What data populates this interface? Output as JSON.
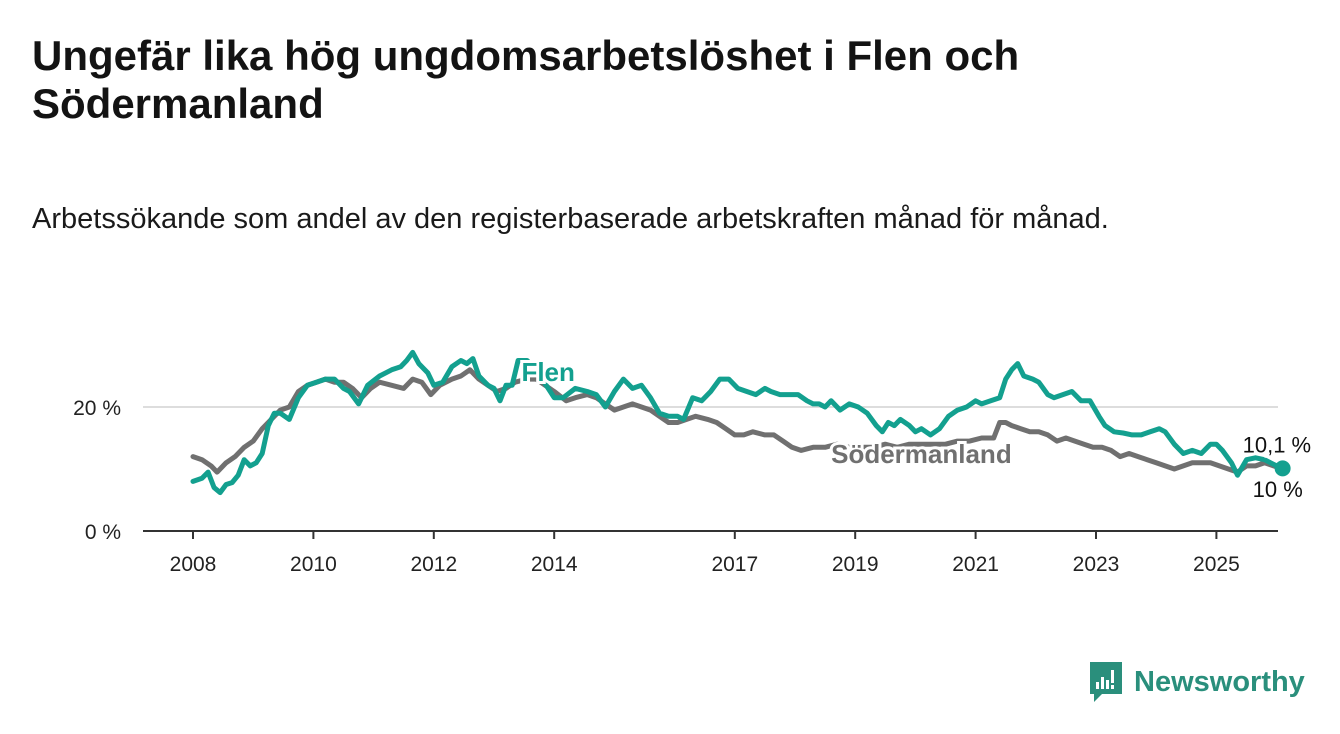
{
  "title": "Ungefär lika hög ungdomsarbetslöshet i Flen och Södermanland",
  "subtitle": "Arbetssökande som andel av den registerbaserade arbetskraften månad för månad.",
  "brand": {
    "name": "Newsworthy",
    "icon": "newsworthy-logo-icon",
    "color": "#2a8f7c"
  },
  "colors": {
    "flen": "#13a08f",
    "sodermanland": "#707070",
    "grid": "#dddddd",
    "axis": "#333333"
  },
  "chart_data": {
    "type": "line",
    "xlim": [
      2008,
      2025.9
    ],
    "ylim": [
      0,
      30
    ],
    "x_ticks": [
      {
        "value": 2008,
        "label": "2008"
      },
      {
        "value": 2010,
        "label": "2010"
      },
      {
        "value": 2012,
        "label": "2012"
      },
      {
        "value": 2014,
        "label": "2014"
      },
      {
        "value": 2017,
        "label": "2017"
      },
      {
        "value": 2019,
        "label": "2019"
      },
      {
        "value": 2021,
        "label": "2021"
      },
      {
        "value": 2023,
        "label": "2023"
      },
      {
        "value": 2025,
        "label": "2025"
      }
    ],
    "y_ticks": [
      {
        "value": 0,
        "label": "0 %"
      },
      {
        "value": 20,
        "label": "20 %"
      }
    ],
    "grid": true,
    "series": [
      {
        "name": "Flen",
        "key": "flen",
        "end_label": "10,1 %",
        "points": [
          [
            2008.0,
            8.0
          ],
          [
            2008.15,
            8.5
          ],
          [
            2008.25,
            9.5
          ],
          [
            2008.35,
            7.0
          ],
          [
            2008.45,
            6.2
          ],
          [
            2008.55,
            7.5
          ],
          [
            2008.65,
            7.8
          ],
          [
            2008.75,
            9.0
          ],
          [
            2008.85,
            11.5
          ],
          [
            2008.95,
            10.5
          ],
          [
            2009.05,
            11.0
          ],
          [
            2009.15,
            12.5
          ],
          [
            2009.25,
            17.0
          ],
          [
            2009.35,
            19.0
          ],
          [
            2009.45,
            19.0
          ],
          [
            2009.6,
            18.0
          ],
          [
            2009.75,
            21.5
          ],
          [
            2009.9,
            23.5
          ],
          [
            2010.05,
            24.0
          ],
          [
            2010.2,
            24.5
          ],
          [
            2010.35,
            24.5
          ],
          [
            2010.5,
            23.0
          ],
          [
            2010.6,
            22.5
          ],
          [
            2010.75,
            20.5
          ],
          [
            2010.9,
            23.5
          ],
          [
            2011.1,
            25.0
          ],
          [
            2011.3,
            26.0
          ],
          [
            2011.45,
            26.5
          ],
          [
            2011.55,
            27.5
          ],
          [
            2011.65,
            28.8
          ],
          [
            2011.75,
            27.0
          ],
          [
            2011.9,
            25.5
          ],
          [
            2012.0,
            23.5
          ],
          [
            2012.15,
            24.0
          ],
          [
            2012.3,
            26.5
          ],
          [
            2012.45,
            27.5
          ],
          [
            2012.55,
            27.0
          ],
          [
            2012.65,
            27.8
          ],
          [
            2012.75,
            25.0
          ],
          [
            2012.9,
            23.5
          ],
          [
            2013.0,
            23.0
          ],
          [
            2013.1,
            21.0
          ],
          [
            2013.2,
            23.5
          ],
          [
            2013.3,
            23.5
          ],
          [
            2013.4,
            27.5
          ],
          [
            2013.55,
            27.5
          ],
          [
            2013.65,
            26.5
          ],
          [
            2013.8,
            24.5
          ],
          [
            2014.0,
            21.5
          ],
          [
            2014.15,
            21.5
          ],
          [
            2014.35,
            23.0
          ],
          [
            2014.55,
            22.5
          ],
          [
            2014.7,
            22.0
          ],
          [
            2014.85,
            20.0
          ],
          [
            2015.0,
            22.5
          ],
          [
            2015.15,
            24.5
          ],
          [
            2015.3,
            23.0
          ],
          [
            2015.45,
            23.5
          ],
          [
            2015.6,
            21.5
          ],
          [
            2015.75,
            19.0
          ],
          [
            2015.9,
            18.5
          ],
          [
            2016.05,
            18.5
          ],
          [
            2016.15,
            18.0
          ],
          [
            2016.3,
            21.5
          ],
          [
            2016.45,
            21.0
          ],
          [
            2016.6,
            22.5
          ],
          [
            2016.75,
            24.5
          ],
          [
            2016.9,
            24.5
          ],
          [
            2017.05,
            23.0
          ],
          [
            2017.2,
            22.5
          ],
          [
            2017.35,
            22.0
          ],
          [
            2017.5,
            23.0
          ],
          [
            2017.6,
            22.5
          ],
          [
            2017.75,
            22.0
          ],
          [
            2017.9,
            22.0
          ],
          [
            2018.05,
            22.0
          ],
          [
            2018.2,
            21.0
          ],
          [
            2018.3,
            20.5
          ],
          [
            2018.4,
            20.5
          ],
          [
            2018.5,
            20.0
          ],
          [
            2018.6,
            21.0
          ],
          [
            2018.75,
            19.5
          ],
          [
            2018.9,
            20.5
          ],
          [
            2019.05,
            20.0
          ],
          [
            2019.2,
            19.0
          ],
          [
            2019.35,
            17.0
          ],
          [
            2019.45,
            16.0
          ],
          [
            2019.55,
            17.5
          ],
          [
            2019.65,
            17.0
          ],
          [
            2019.75,
            18.0
          ],
          [
            2019.9,
            17.0
          ],
          [
            2020.0,
            16.0
          ],
          [
            2020.1,
            16.5
          ],
          [
            2020.25,
            15.5
          ],
          [
            2020.4,
            16.5
          ],
          [
            2020.55,
            18.5
          ],
          [
            2020.7,
            19.5
          ],
          [
            2020.85,
            20.0
          ],
          [
            2021.0,
            21.0
          ],
          [
            2021.1,
            20.5
          ],
          [
            2021.25,
            21.0
          ],
          [
            2021.4,
            21.5
          ],
          [
            2021.5,
            24.5
          ],
          [
            2021.6,
            26.0
          ],
          [
            2021.7,
            27.0
          ],
          [
            2021.8,
            25.0
          ],
          [
            2021.95,
            24.5
          ],
          [
            2022.05,
            24.0
          ],
          [
            2022.2,
            22.0
          ],
          [
            2022.3,
            21.5
          ],
          [
            2022.45,
            22.0
          ],
          [
            2022.6,
            22.5
          ],
          [
            2022.75,
            21.0
          ],
          [
            2022.9,
            21.0
          ],
          [
            2023.05,
            18.5
          ],
          [
            2023.15,
            17.0
          ],
          [
            2023.3,
            16.0
          ],
          [
            2023.45,
            15.8
          ],
          [
            2023.6,
            15.5
          ],
          [
            2023.75,
            15.5
          ],
          [
            2023.9,
            16.0
          ],
          [
            2024.05,
            16.5
          ],
          [
            2024.15,
            16.0
          ],
          [
            2024.3,
            14.0
          ],
          [
            2024.45,
            12.5
          ],
          [
            2024.6,
            13.0
          ],
          [
            2024.75,
            12.5
          ],
          [
            2024.9,
            14.0
          ],
          [
            2025.0,
            14.0
          ],
          [
            2025.1,
            13.0
          ],
          [
            2025.25,
            11.0
          ],
          [
            2025.35,
            9.0
          ],
          [
            2025.5,
            11.5
          ],
          [
            2025.65,
            11.8
          ],
          [
            2025.8,
            11.5
          ],
          [
            2025.9,
            11.0
          ],
          [
            2026.0,
            10.5
          ],
          [
            2026.1,
            10.1
          ]
        ]
      },
      {
        "name": "Södermanland",
        "key": "sodermanland",
        "end_label": "10 %",
        "points": [
          [
            2008.0,
            12.0
          ],
          [
            2008.15,
            11.5
          ],
          [
            2008.3,
            10.5
          ],
          [
            2008.4,
            9.5
          ],
          [
            2008.55,
            11.0
          ],
          [
            2008.7,
            12.0
          ],
          [
            2008.85,
            13.5
          ],
          [
            2009.0,
            14.5
          ],
          [
            2009.15,
            16.5
          ],
          [
            2009.3,
            18.0
          ],
          [
            2009.45,
            19.5
          ],
          [
            2009.6,
            20.0
          ],
          [
            2009.75,
            22.5
          ],
          [
            2009.9,
            23.5
          ],
          [
            2010.05,
            24.0
          ],
          [
            2010.2,
            24.5
          ],
          [
            2010.35,
            24.0
          ],
          [
            2010.5,
            24.0
          ],
          [
            2010.65,
            23.0
          ],
          [
            2010.8,
            21.5
          ],
          [
            2010.95,
            23.0
          ],
          [
            2011.1,
            24.0
          ],
          [
            2011.3,
            23.5
          ],
          [
            2011.5,
            23.0
          ],
          [
            2011.65,
            24.5
          ],
          [
            2011.8,
            24.0
          ],
          [
            2011.95,
            22.0
          ],
          [
            2012.1,
            23.5
          ],
          [
            2012.3,
            24.5
          ],
          [
            2012.45,
            25.0
          ],
          [
            2012.6,
            26.0
          ],
          [
            2012.75,
            24.5
          ],
          [
            2012.9,
            23.5
          ],
          [
            2013.05,
            22.5
          ],
          [
            2013.2,
            23.0
          ],
          [
            2013.35,
            24.0
          ],
          [
            2013.55,
            24.5
          ],
          [
            2013.7,
            24.5
          ],
          [
            2013.85,
            23.5
          ],
          [
            2014.0,
            22.5
          ],
          [
            2014.2,
            21.0
          ],
          [
            2014.35,
            21.5
          ],
          [
            2014.55,
            22.0
          ],
          [
            2014.7,
            21.5
          ],
          [
            2014.85,
            20.5
          ],
          [
            2015.0,
            19.5
          ],
          [
            2015.15,
            20.0
          ],
          [
            2015.3,
            20.5
          ],
          [
            2015.45,
            20.0
          ],
          [
            2015.6,
            19.5
          ],
          [
            2015.75,
            18.5
          ],
          [
            2015.9,
            17.5
          ],
          [
            2016.05,
            17.5
          ],
          [
            2016.2,
            18.0
          ],
          [
            2016.35,
            18.5
          ],
          [
            2016.55,
            18.0
          ],
          [
            2016.7,
            17.5
          ],
          [
            2016.85,
            16.5
          ],
          [
            2017.0,
            15.5
          ],
          [
            2017.15,
            15.5
          ],
          [
            2017.3,
            16.0
          ],
          [
            2017.5,
            15.5
          ],
          [
            2017.65,
            15.5
          ],
          [
            2017.8,
            14.5
          ],
          [
            2017.95,
            13.5
          ],
          [
            2018.1,
            13.0
          ],
          [
            2018.3,
            13.5
          ],
          [
            2018.5,
            13.5
          ],
          [
            2018.7,
            14.0
          ],
          [
            2018.9,
            13.5
          ],
          [
            2019.1,
            13.5
          ],
          [
            2019.3,
            13.5
          ],
          [
            2019.5,
            14.0
          ],
          [
            2019.7,
            13.5
          ],
          [
            2019.9,
            14.0
          ],
          [
            2020.1,
            14.0
          ],
          [
            2020.3,
            14.0
          ],
          [
            2020.5,
            14.0
          ],
          [
            2020.7,
            14.5
          ],
          [
            2020.9,
            14.5
          ],
          [
            2021.1,
            15.0
          ],
          [
            2021.3,
            15.0
          ],
          [
            2021.4,
            17.5
          ],
          [
            2021.5,
            17.5
          ],
          [
            2021.6,
            17.0
          ],
          [
            2021.75,
            16.5
          ],
          [
            2021.9,
            16.0
          ],
          [
            2022.05,
            16.0
          ],
          [
            2022.2,
            15.5
          ],
          [
            2022.35,
            14.5
          ],
          [
            2022.5,
            15.0
          ],
          [
            2022.65,
            14.5
          ],
          [
            2022.8,
            14.0
          ],
          [
            2022.95,
            13.5
          ],
          [
            2023.1,
            13.5
          ],
          [
            2023.25,
            13.0
          ],
          [
            2023.4,
            12.0
          ],
          [
            2023.55,
            12.5
          ],
          [
            2023.7,
            12.0
          ],
          [
            2023.85,
            11.5
          ],
          [
            2024.0,
            11.0
          ],
          [
            2024.15,
            10.5
          ],
          [
            2024.3,
            10.0
          ],
          [
            2024.45,
            10.5
          ],
          [
            2024.6,
            11.0
          ],
          [
            2024.75,
            11.0
          ],
          [
            2024.9,
            11.0
          ],
          [
            2025.05,
            10.5
          ],
          [
            2025.2,
            10.0
          ],
          [
            2025.35,
            9.5
          ],
          [
            2025.5,
            10.5
          ],
          [
            2025.65,
            10.5
          ],
          [
            2025.8,
            11.0
          ],
          [
            2025.95,
            10.5
          ],
          [
            2026.1,
            10.0
          ]
        ]
      }
    ]
  }
}
